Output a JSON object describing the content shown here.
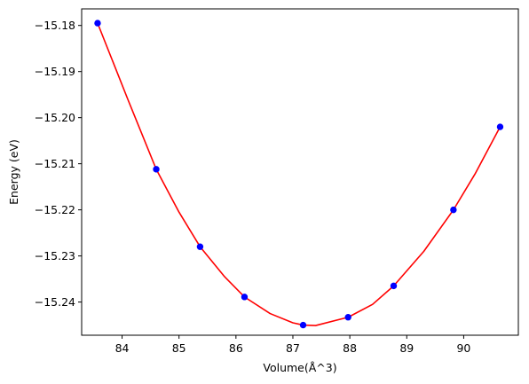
{
  "chart_data": {
    "type": "scatter",
    "xlabel": "Volume(Å^3)",
    "ylabel": "Energy (eV)",
    "xlim": [
      83.29,
      90.96
    ],
    "ylim": [
      -15.2472,
      -15.1764
    ],
    "xticks": [
      84,
      85,
      86,
      87,
      88,
      89,
      90
    ],
    "yticks": [
      -15.18,
      -15.19,
      -15.2,
      -15.21,
      -15.22,
      -15.23,
      -15.24
    ],
    "ytick_labels": [
      "−15.18",
      "−15.19",
      "−15.20",
      "−15.21",
      "−15.22",
      "−15.23",
      "−15.24"
    ],
    "grid": false,
    "legend": false,
    "point_color": "#0000ff",
    "fit_color": "#ff0000",
    "series": [
      {
        "kind": "points",
        "x": [
          83.57,
          84.6,
          85.37,
          86.15,
          87.18,
          87.97,
          88.77,
          89.82,
          90.64
        ],
        "y": [
          -15.1795,
          -15.2112,
          -15.228,
          -15.2389,
          -15.245,
          -15.2433,
          -15.2365,
          -15.22,
          -15.202
        ]
      },
      {
        "kind": "fit-curve",
        "x": [
          83.57,
          84.1,
          84.6,
          85.0,
          85.37,
          85.8,
          86.15,
          86.6,
          87.0,
          87.18,
          87.4,
          87.97,
          88.4,
          88.77,
          89.3,
          89.82,
          90.2,
          90.64
        ],
        "y": [
          -15.1795,
          -15.196,
          -15.2112,
          -15.2205,
          -15.228,
          -15.2345,
          -15.2389,
          -15.2425,
          -15.2445,
          -15.245,
          -15.2451,
          -15.2433,
          -15.2405,
          -15.2365,
          -15.229,
          -15.22,
          -15.2122,
          -15.202
        ]
      }
    ]
  }
}
